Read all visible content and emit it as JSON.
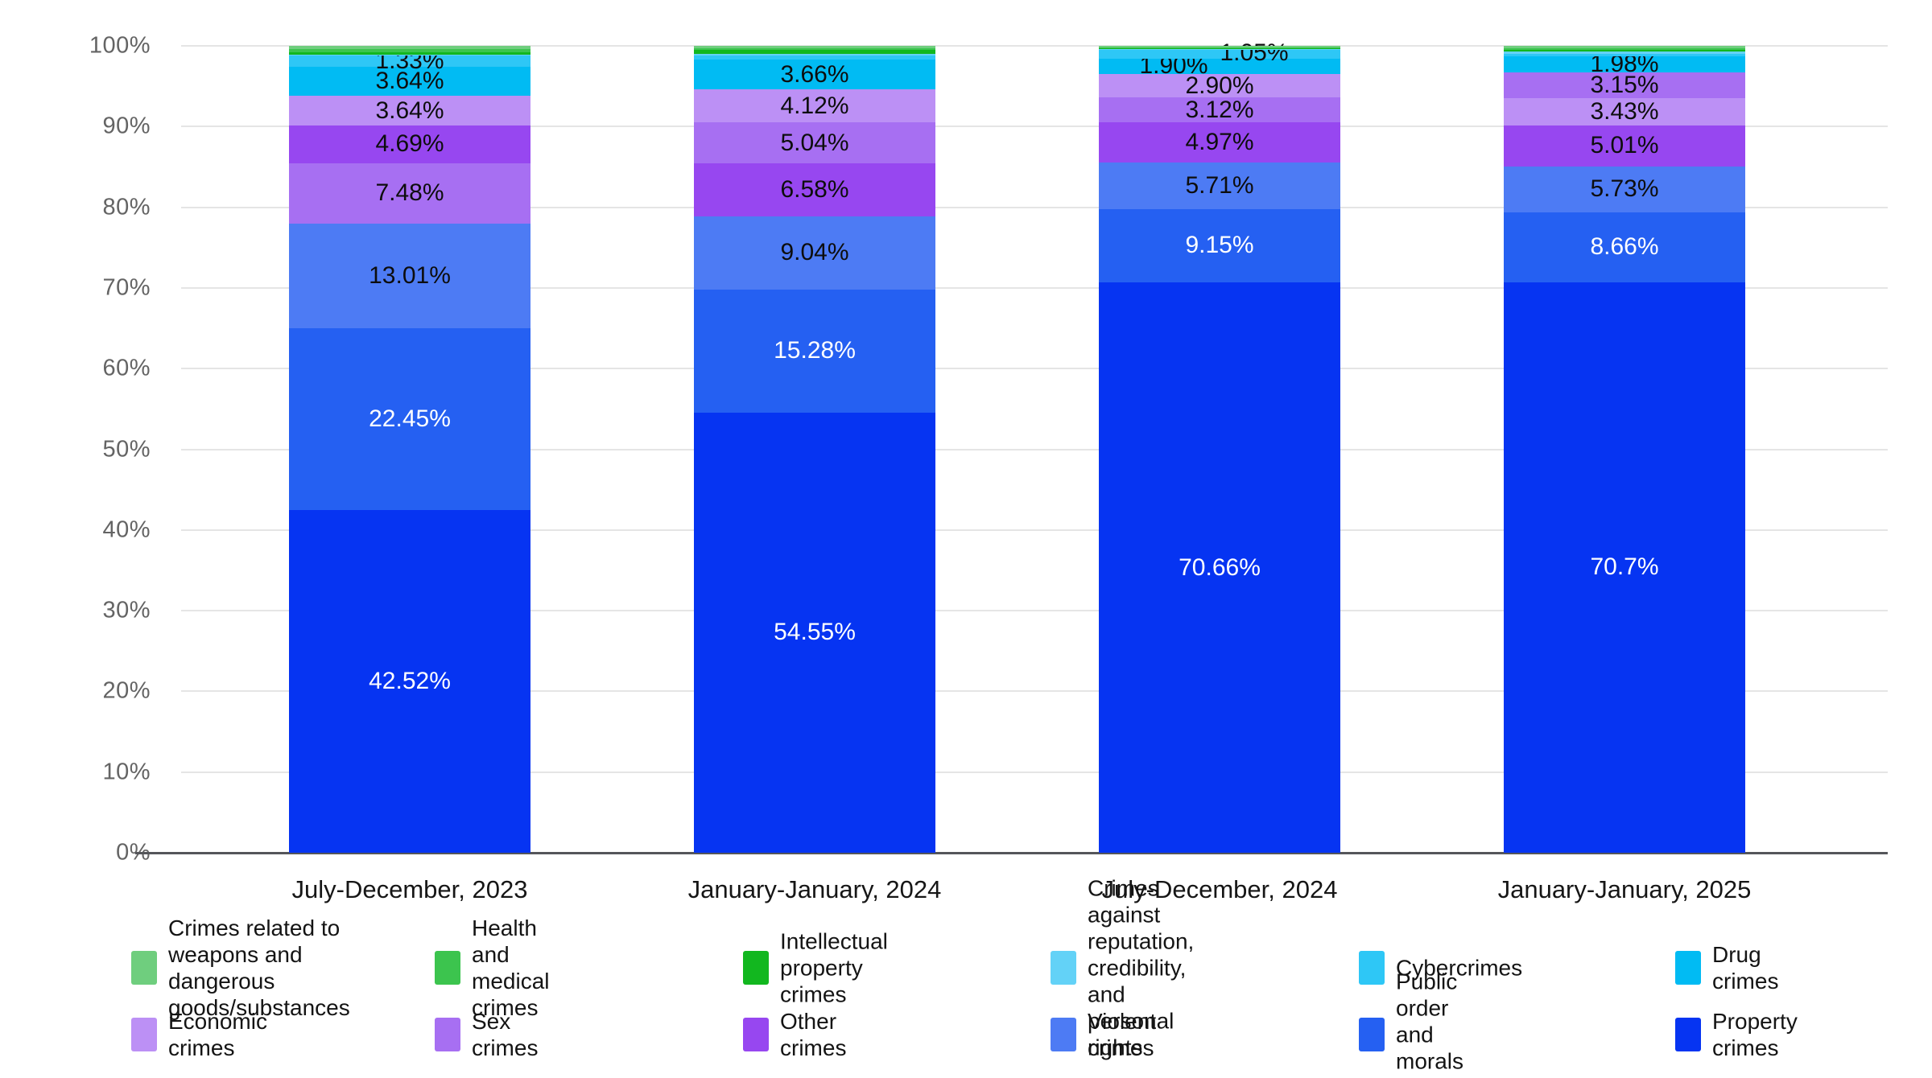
{
  "chart_data": {
    "type": "bar",
    "stacked": true,
    "value_unit": "%",
    "ylim": [
      0,
      100
    ],
    "grid": true,
    "legend_position": "bottom",
    "y_ticks": [
      "0%",
      "10%",
      "20%",
      "30%",
      "40%",
      "50%",
      "60%",
      "70%",
      "80%",
      "90%",
      "100%"
    ],
    "categories": [
      "July-December, 2023",
      "January-January, 2024",
      "July-December, 2024",
      "January-January, 2025"
    ],
    "legend": [
      {
        "key": "weapons",
        "label": "Crimes related to\nweapons and dangerous\ngoods/substances",
        "color": "#6fce7e"
      },
      {
        "key": "health",
        "label": "Health and medical crimes",
        "color": "#3cc44e"
      },
      {
        "key": "intellectual",
        "label": "Intellectual property crimes",
        "color": "#12b71f"
      },
      {
        "key": "reputation",
        "label": "Crimes against reputation,\ncredibility, and personal\nrights",
        "color": "#63d2f7"
      },
      {
        "key": "cyber",
        "label": "Cybercrimes",
        "color": "#2ec7f6"
      },
      {
        "key": "drug",
        "label": "Drug crimes",
        "color": "#01bbf3"
      },
      {
        "key": "economic",
        "label": "Economic crimes",
        "color": "#bc90f5"
      },
      {
        "key": "sex",
        "label": "Sex crimes",
        "color": "#a76ff2"
      },
      {
        "key": "other",
        "label": "Other crimes",
        "color": "#9747f0"
      },
      {
        "key": "violent",
        "label": "Violent crimes",
        "color": "#4d7bf4"
      },
      {
        "key": "public_order",
        "label": "Public order and\nmorals crimes",
        "color": "#2560f2"
      },
      {
        "key": "property",
        "label": "Property crimes",
        "color": "#0634f2"
      }
    ],
    "series": [
      {
        "name": "Crimes related to weapons and dangerous goods/substances",
        "key": "weapons",
        "values": [
          0.4,
          0.3,
          0.15,
          0.3
        ]
      },
      {
        "name": "Health and medical crimes",
        "key": "health",
        "values": [
          0.35,
          0.2,
          0.1,
          0.15
        ]
      },
      {
        "name": "Intellectual property crimes",
        "key": "intellectual",
        "values": [
          0.35,
          0.45,
          0.17,
          0.25
        ]
      },
      {
        "name": "Crimes against reputation, credibility, and personal rights",
        "key": "reputation",
        "values": [
          0.14,
          0.28,
          0.12,
          0.25
        ]
      },
      {
        "name": "Cybercrimes",
        "key": "cyber",
        "values": [
          1.33,
          0.5,
          1.05,
          0.39
        ]
      },
      {
        "name": "Drug crimes",
        "key": "drug",
        "values": [
          3.64,
          3.66,
          1.9,
          1.98
        ]
      },
      {
        "name": "Economic crimes",
        "key": "economic",
        "values": [
          3.64,
          4.12,
          2.9,
          3.43
        ]
      },
      {
        "name": "Sex crimes",
        "key": "sex",
        "values": [
          7.48,
          5.04,
          3.12,
          3.15
        ]
      },
      {
        "name": "Other crimes",
        "key": "other",
        "values": [
          4.69,
          6.58,
          4.97,
          5.01
        ]
      },
      {
        "name": "Violent crimes",
        "key": "violent",
        "values": [
          13.01,
          9.04,
          5.71,
          5.73
        ]
      },
      {
        "name": "Public order and morals crimes",
        "key": "public_order",
        "values": [
          22.45,
          15.28,
          9.15,
          8.66
        ]
      },
      {
        "name": "Property crimes",
        "key": "property",
        "values": [
          42.52,
          54.55,
          70.66,
          70.7
        ]
      }
    ],
    "bars": [
      {
        "category": "July-December, 2023",
        "segments_bottom_up": [
          {
            "key": "property",
            "value": 42.52,
            "label": "42.52%",
            "label_color": "#ffffff"
          },
          {
            "key": "public_order",
            "value": 22.45,
            "label": "22.45%",
            "label_color": "#ffffff"
          },
          {
            "key": "violent",
            "value": 13.01,
            "label": "13.01%",
            "label_color": "#0d0d0d"
          },
          {
            "key": "sex",
            "value": 7.48,
            "label": "7.48%",
            "label_color": "#0d0d0d"
          },
          {
            "key": "other",
            "value": 4.69,
            "label": "4.69%",
            "label_color": "#0d0d0d"
          },
          {
            "key": "economic",
            "value": 3.64,
            "label": "3.64%",
            "label_color": "#0d0d0d"
          },
          {
            "key": "drug",
            "value": 3.64,
            "label": "3.64%",
            "label_color": "#0d0d0d"
          },
          {
            "key": "cyber",
            "value": 1.33,
            "label": "1.33%",
            "label_color": "#0d0d0d"
          },
          {
            "key": "reputation",
            "value": 0.14,
            "label": null
          },
          {
            "key": "intellectual",
            "value": 0.35,
            "label": null
          },
          {
            "key": "health",
            "value": 0.35,
            "label": null
          },
          {
            "key": "weapons",
            "value": 0.4,
            "label": null
          }
        ]
      },
      {
        "category": "January-January, 2024",
        "segments_bottom_up": [
          {
            "key": "property",
            "value": 54.55,
            "label": "54.55%",
            "label_color": "#ffffff"
          },
          {
            "key": "public_order",
            "value": 15.28,
            "label": "15.28%",
            "label_color": "#ffffff"
          },
          {
            "key": "violent",
            "value": 9.04,
            "label": "9.04%",
            "label_color": "#0d0d0d"
          },
          {
            "key": "other",
            "value": 6.58,
            "label": "6.58%",
            "label_color": "#0d0d0d"
          },
          {
            "key": "sex",
            "value": 5.04,
            "label": "5.04%",
            "label_color": "#0d0d0d"
          },
          {
            "key": "economic",
            "value": 4.12,
            "label": "4.12%",
            "label_color": "#0d0d0d"
          },
          {
            "key": "drug",
            "value": 3.66,
            "label": "3.66%",
            "label_color": "#0d0d0d"
          },
          {
            "key": "cyber",
            "value": 0.5,
            "label": null
          },
          {
            "key": "reputation",
            "value": 0.28,
            "label": null
          },
          {
            "key": "intellectual",
            "value": 0.45,
            "label": null
          },
          {
            "key": "health",
            "value": 0.2,
            "label": null
          },
          {
            "key": "weapons",
            "value": 0.3,
            "label": null
          }
        ]
      },
      {
        "category": "July-December, 2024",
        "segments_bottom_up": [
          {
            "key": "property",
            "value": 70.66,
            "label": "70.66%",
            "label_color": "#ffffff"
          },
          {
            "key": "public_order",
            "value": 9.15,
            "label": "9.15%",
            "label_color": "#ffffff"
          },
          {
            "key": "violent",
            "value": 5.71,
            "label": "5.71%",
            "label_color": "#0d0d0d"
          },
          {
            "key": "other",
            "value": 4.97,
            "label": "4.97%",
            "label_color": "#0d0d0d"
          },
          {
            "key": "sex",
            "value": 3.12,
            "label": "3.12%",
            "label_color": "#0d0d0d"
          },
          {
            "key": "economic",
            "value": 2.9,
            "label": "2.90%",
            "label_color": "#0d0d0d"
          },
          {
            "key": "drug",
            "value": 1.9,
            "label": "1.90%",
            "label_color": "#0d0d0d",
            "dx": -57
          },
          {
            "key": "cyber",
            "value": 1.05,
            "label": "1.05%",
            "label_color": "#0d0d0d",
            "dx": 43,
            "dy": -2
          },
          {
            "key": "reputation",
            "value": 0.12,
            "label": null
          },
          {
            "key": "intellectual",
            "value": 0.17,
            "label": null
          },
          {
            "key": "health",
            "value": 0.1,
            "label": null
          },
          {
            "key": "weapons",
            "value": 0.15,
            "label": null
          }
        ]
      },
      {
        "category": "January-January, 2025",
        "segments_bottom_up": [
          {
            "key": "property",
            "value": 70.7,
            "label": "70.7%",
            "label_color": "#ffffff"
          },
          {
            "key": "public_order",
            "value": 8.66,
            "label": "8.66%",
            "label_color": "#ffffff"
          },
          {
            "key": "violent",
            "value": 5.73,
            "label": "5.73%",
            "label_color": "#0d0d0d"
          },
          {
            "key": "other",
            "value": 5.01,
            "label": "5.01%",
            "label_color": "#0d0d0d"
          },
          {
            "key": "economic",
            "value": 3.43,
            "label": "3.43%",
            "label_color": "#0d0d0d"
          },
          {
            "key": "sex",
            "value": 3.15,
            "label": "3.15%",
            "label_color": "#0d0d0d"
          },
          {
            "key": "drug",
            "value": 1.98,
            "label": "1.98%",
            "label_color": "#0d0d0d"
          },
          {
            "key": "cyber",
            "value": 0.39,
            "label": null
          },
          {
            "key": "reputation",
            "value": 0.25,
            "label": null
          },
          {
            "key": "intellectual",
            "value": 0.25,
            "label": null
          },
          {
            "key": "health",
            "value": 0.15,
            "label": null
          },
          {
            "key": "weapons",
            "value": 0.3,
            "label": null
          }
        ]
      }
    ]
  }
}
